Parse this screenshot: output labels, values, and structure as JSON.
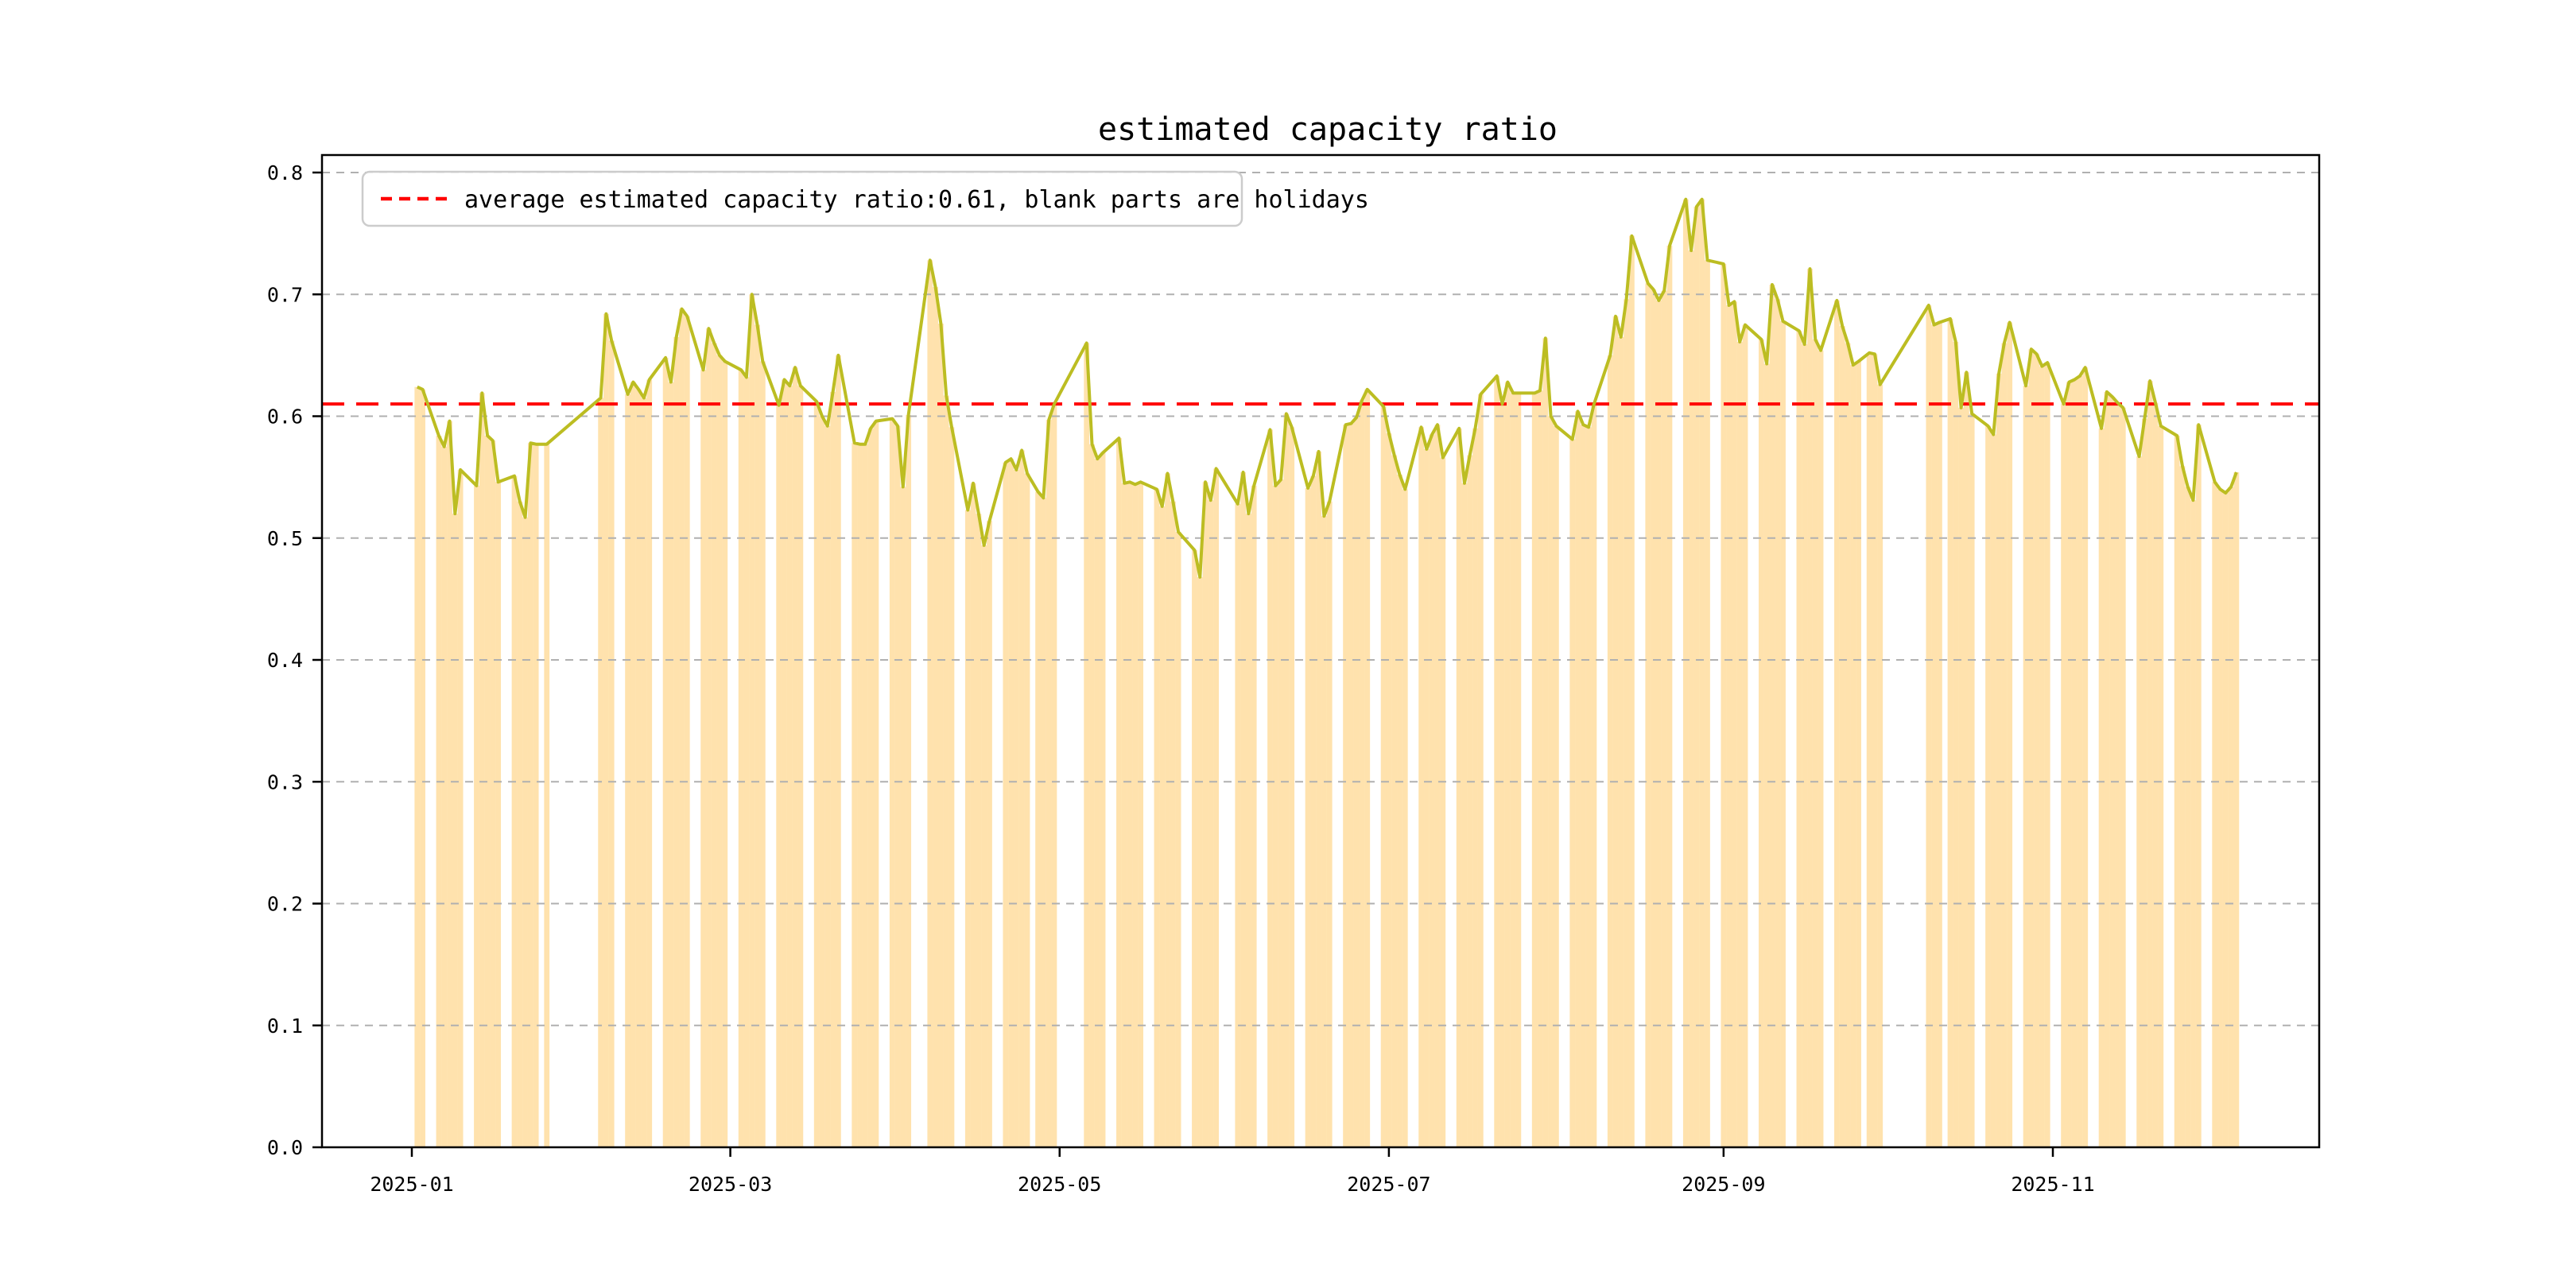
{
  "figure": {
    "background_color": "#ffffff"
  },
  "chart_data": {
    "type": "bar+line",
    "title": "estimated capacity ratio",
    "legend_label": "average estimated capacity ratio:0.61, blank parts are holidays",
    "average": 0.61,
    "average_line_color": "#ff0000",
    "line_color": "#bcbd22",
    "bar_color": "rgba(255,165,0,0.32)",
    "grid_color": "#b0b0b0",
    "axis_color": "#000000",
    "legend_border_color": "#cccccc",
    "grid": true,
    "legend_position": "upper left",
    "ylim": [
      0,
      0.8145
    ],
    "yticks": [
      "0.0",
      "0.1",
      "0.2",
      "0.3",
      "0.4",
      "0.5",
      "0.6",
      "0.7",
      "0.8"
    ],
    "xticks": [
      {
        "label": "2025-01",
        "date": "2025-01-01"
      },
      {
        "label": "2025-03",
        "date": "2025-03-01"
      },
      {
        "label": "2025-05",
        "date": "2025-05-01"
      },
      {
        "label": "2025-07",
        "date": "2025-07-01"
      },
      {
        "label": "2025-09",
        "date": "2025-09-01"
      },
      {
        "label": "2025-11",
        "date": "2025-11-01"
      }
    ],
    "holidays_are_blank": true,
    "points": [
      [
        "2025-01-02",
        0.624
      ],
      [
        "2025-01-03",
        0.622
      ],
      [
        "2025-01-06",
        0.584
      ],
      [
        "2025-01-07",
        0.575
      ],
      [
        "2025-01-08",
        0.596
      ],
      [
        "2025-01-09",
        0.52
      ],
      [
        "2025-01-10",
        0.556
      ],
      [
        "2025-01-13",
        0.543
      ],
      [
        "2025-01-14",
        0.619
      ],
      [
        "2025-01-15",
        0.584
      ],
      [
        "2025-01-16",
        0.58
      ],
      [
        "2025-01-17",
        0.546
      ],
      [
        "2025-01-20",
        0.551
      ],
      [
        "2025-01-21",
        0.53
      ],
      [
        "2025-01-22",
        0.517
      ],
      [
        "2025-01-23",
        0.578
      ],
      [
        "2025-01-24",
        0.577
      ],
      [
        "2025-01-26",
        0.577
      ],
      [
        "2025-02-05",
        0.615
      ],
      [
        "2025-02-06",
        0.684
      ],
      [
        "2025-02-07",
        0.662
      ],
      [
        "2025-02-10",
        0.618
      ],
      [
        "2025-02-11",
        0.628
      ],
      [
        "2025-02-12",
        0.622
      ],
      [
        "2025-02-13",
        0.615
      ],
      [
        "2025-02-14",
        0.63
      ],
      [
        "2025-02-17",
        0.648
      ],
      [
        "2025-02-18",
        0.628
      ],
      [
        "2025-02-19",
        0.665
      ],
      [
        "2025-02-20",
        0.688
      ],
      [
        "2025-02-21",
        0.682
      ],
      [
        "2025-02-24",
        0.638
      ],
      [
        "2025-02-25",
        0.672
      ],
      [
        "2025-02-26",
        0.66
      ],
      [
        "2025-02-27",
        0.65
      ],
      [
        "2025-02-28",
        0.645
      ],
      [
        "2025-03-03",
        0.638
      ],
      [
        "2025-03-04",
        0.632
      ],
      [
        "2025-03-05",
        0.7
      ],
      [
        "2025-03-06",
        0.675
      ],
      [
        "2025-03-07",
        0.645
      ],
      [
        "2025-03-10",
        0.609
      ],
      [
        "2025-03-11",
        0.63
      ],
      [
        "2025-03-12",
        0.625
      ],
      [
        "2025-03-13",
        0.64
      ],
      [
        "2025-03-14",
        0.625
      ],
      [
        "2025-03-17",
        0.612
      ],
      [
        "2025-03-18",
        0.6
      ],
      [
        "2025-03-19",
        0.592
      ],
      [
        "2025-03-20",
        0.62
      ],
      [
        "2025-03-21",
        0.65
      ],
      [
        "2025-03-24",
        0.578
      ],
      [
        "2025-03-25",
        0.577
      ],
      [
        "2025-03-26",
        0.577
      ],
      [
        "2025-03-27",
        0.59
      ],
      [
        "2025-03-28",
        0.596
      ],
      [
        "2025-03-31",
        0.598
      ],
      [
        "2025-04-01",
        0.592
      ],
      [
        "2025-04-02",
        0.542
      ],
      [
        "2025-04-03",
        0.601
      ],
      [
        "2025-04-07",
        0.728
      ],
      [
        "2025-04-08",
        0.706
      ],
      [
        "2025-04-09",
        0.676
      ],
      [
        "2025-04-10",
        0.617
      ],
      [
        "2025-04-11",
        0.591
      ],
      [
        "2025-04-14",
        0.523
      ],
      [
        "2025-04-15",
        0.545
      ],
      [
        "2025-04-16",
        0.52
      ],
      [
        "2025-04-17",
        0.494
      ],
      [
        "2025-04-18",
        0.514
      ],
      [
        "2025-04-21",
        0.562
      ],
      [
        "2025-04-22",
        0.565
      ],
      [
        "2025-04-23",
        0.556
      ],
      [
        "2025-04-24",
        0.572
      ],
      [
        "2025-04-25",
        0.553
      ],
      [
        "2025-04-27",
        0.538
      ],
      [
        "2025-04-28",
        0.533
      ],
      [
        "2025-04-29",
        0.597
      ],
      [
        "2025-04-30",
        0.61
      ],
      [
        "2025-05-06",
        0.66
      ],
      [
        "2025-05-07",
        0.577
      ],
      [
        "2025-05-08",
        0.565
      ],
      [
        "2025-05-09",
        0.57
      ],
      [
        "2025-05-12",
        0.582
      ],
      [
        "2025-05-13",
        0.545
      ],
      [
        "2025-05-14",
        0.546
      ],
      [
        "2025-05-15",
        0.544
      ],
      [
        "2025-05-16",
        0.546
      ],
      [
        "2025-05-19",
        0.54
      ],
      [
        "2025-05-20",
        0.526
      ],
      [
        "2025-05-21",
        0.553
      ],
      [
        "2025-05-22",
        0.53
      ],
      [
        "2025-05-23",
        0.505
      ],
      [
        "2025-05-26",
        0.49
      ],
      [
        "2025-05-27",
        0.468
      ],
      [
        "2025-05-28",
        0.546
      ],
      [
        "2025-05-29",
        0.531
      ],
      [
        "2025-05-30",
        0.557
      ],
      [
        "2025-06-03",
        0.528
      ],
      [
        "2025-06-04",
        0.554
      ],
      [
        "2025-06-05",
        0.52
      ],
      [
        "2025-06-06",
        0.543
      ],
      [
        "2025-06-09",
        0.589
      ],
      [
        "2025-06-10",
        0.543
      ],
      [
        "2025-06-11",
        0.548
      ],
      [
        "2025-06-12",
        0.602
      ],
      [
        "2025-06-13",
        0.591
      ],
      [
        "2025-06-16",
        0.541
      ],
      [
        "2025-06-17",
        0.551
      ],
      [
        "2025-06-18",
        0.571
      ],
      [
        "2025-06-19",
        0.518
      ],
      [
        "2025-06-20",
        0.53
      ],
      [
        "2025-06-23",
        0.593
      ],
      [
        "2025-06-24",
        0.594
      ],
      [
        "2025-06-25",
        0.599
      ],
      [
        "2025-06-26",
        0.613
      ],
      [
        "2025-06-27",
        0.622
      ],
      [
        "2025-06-30",
        0.608
      ],
      [
        "2025-07-01",
        0.586
      ],
      [
        "2025-07-02",
        0.568
      ],
      [
        "2025-07-03",
        0.552
      ],
      [
        "2025-07-04",
        0.54
      ],
      [
        "2025-07-07",
        0.591
      ],
      [
        "2025-07-08",
        0.573
      ],
      [
        "2025-07-09",
        0.585
      ],
      [
        "2025-07-10",
        0.593
      ],
      [
        "2025-07-11",
        0.566
      ],
      [
        "2025-07-14",
        0.59
      ],
      [
        "2025-07-15",
        0.545
      ],
      [
        "2025-07-16",
        0.568
      ],
      [
        "2025-07-17",
        0.59
      ],
      [
        "2025-07-18",
        0.618
      ],
      [
        "2025-07-21",
        0.633
      ],
      [
        "2025-07-22",
        0.61
      ],
      [
        "2025-07-23",
        0.628
      ],
      [
        "2025-07-24",
        0.619
      ],
      [
        "2025-07-25",
        0.619
      ],
      [
        "2025-07-28",
        0.619
      ],
      [
        "2025-07-29",
        0.621
      ],
      [
        "2025-07-30",
        0.664
      ],
      [
        "2025-07-31",
        0.6
      ],
      [
        "2025-08-01",
        0.592
      ],
      [
        "2025-08-04",
        0.581
      ],
      [
        "2025-08-05",
        0.604
      ],
      [
        "2025-08-06",
        0.593
      ],
      [
        "2025-08-07",
        0.591
      ],
      [
        "2025-08-08",
        0.61
      ],
      [
        "2025-08-11",
        0.65
      ],
      [
        "2025-08-12",
        0.682
      ],
      [
        "2025-08-13",
        0.665
      ],
      [
        "2025-08-14",
        0.696
      ],
      [
        "2025-08-15",
        0.748
      ],
      [
        "2025-08-18",
        0.709
      ],
      [
        "2025-08-19",
        0.704
      ],
      [
        "2025-08-20",
        0.695
      ],
      [
        "2025-08-21",
        0.703
      ],
      [
        "2025-08-22",
        0.74
      ],
      [
        "2025-08-25",
        0.778
      ],
      [
        "2025-08-26",
        0.736
      ],
      [
        "2025-08-27",
        0.772
      ],
      [
        "2025-08-28",
        0.778
      ],
      [
        "2025-08-29",
        0.728
      ],
      [
        "2025-09-01",
        0.725
      ],
      [
        "2025-09-02",
        0.691
      ],
      [
        "2025-09-03",
        0.694
      ],
      [
        "2025-09-04",
        0.661
      ],
      [
        "2025-09-05",
        0.675
      ],
      [
        "2025-09-08",
        0.663
      ],
      [
        "2025-09-09",
        0.643
      ],
      [
        "2025-09-10",
        0.708
      ],
      [
        "2025-09-11",
        0.696
      ],
      [
        "2025-09-12",
        0.678
      ],
      [
        "2025-09-15",
        0.67
      ],
      [
        "2025-09-16",
        0.659
      ],
      [
        "2025-09-17",
        0.721
      ],
      [
        "2025-09-18",
        0.663
      ],
      [
        "2025-09-19",
        0.654
      ],
      [
        "2025-09-22",
        0.695
      ],
      [
        "2025-09-23",
        0.674
      ],
      [
        "2025-09-24",
        0.66
      ],
      [
        "2025-09-25",
        0.642
      ],
      [
        "2025-09-26",
        0.645
      ],
      [
        "2025-09-28",
        0.652
      ],
      [
        "2025-09-29",
        0.651
      ],
      [
        "2025-09-30",
        0.626
      ],
      [
        "2025-10-09",
        0.691
      ],
      [
        "2025-10-10",
        0.675
      ],
      [
        "2025-10-11",
        0.677
      ],
      [
        "2025-10-13",
        0.68
      ],
      [
        "2025-10-14",
        0.661
      ],
      [
        "2025-10-15",
        0.607
      ],
      [
        "2025-10-16",
        0.636
      ],
      [
        "2025-10-17",
        0.602
      ],
      [
        "2025-10-20",
        0.592
      ],
      [
        "2025-10-21",
        0.585
      ],
      [
        "2025-10-22",
        0.635
      ],
      [
        "2025-10-23",
        0.66
      ],
      [
        "2025-10-24",
        0.677
      ],
      [
        "2025-10-27",
        0.625
      ],
      [
        "2025-10-28",
        0.655
      ],
      [
        "2025-10-29",
        0.651
      ],
      [
        "2025-10-30",
        0.641
      ],
      [
        "2025-10-31",
        0.644
      ],
      [
        "2025-11-03",
        0.61
      ],
      [
        "2025-11-04",
        0.628
      ],
      [
        "2025-11-05",
        0.63
      ],
      [
        "2025-11-06",
        0.633
      ],
      [
        "2025-11-07",
        0.64
      ],
      [
        "2025-11-10",
        0.59
      ],
      [
        "2025-11-11",
        0.62
      ],
      [
        "2025-11-12",
        0.616
      ],
      [
        "2025-11-13",
        0.611
      ],
      [
        "2025-11-14",
        0.607
      ],
      [
        "2025-11-17",
        0.567
      ],
      [
        "2025-11-18",
        0.598
      ],
      [
        "2025-11-19",
        0.629
      ],
      [
        "2025-11-20",
        0.611
      ],
      [
        "2025-11-21",
        0.592
      ],
      [
        "2025-11-24",
        0.584
      ],
      [
        "2025-11-25",
        0.559
      ],
      [
        "2025-11-26",
        0.542
      ],
      [
        "2025-11-27",
        0.531
      ],
      [
        "2025-11-28",
        0.593
      ],
      [
        "2025-12-01",
        0.546
      ],
      [
        "2025-12-02",
        0.54
      ],
      [
        "2025-12-03",
        0.537
      ],
      [
        "2025-12-04",
        0.542
      ],
      [
        "2025-12-05",
        0.554
      ]
    ]
  }
}
